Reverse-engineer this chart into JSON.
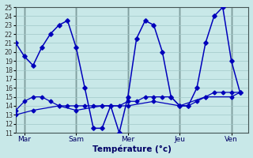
{
  "background_color": "#c8e8e8",
  "grid_color": "#a0c8c8",
  "line_color": "#0000bb",
  "vline_color": "#334444",
  "xlabel": "Température (°c)",
  "ylim": [
    11,
    25
  ],
  "yticks": [
    11,
    12,
    13,
    14,
    15,
    16,
    17,
    18,
    19,
    20,
    21,
    22,
    23,
    24,
    25
  ],
  "xlim": [
    0,
    27
  ],
  "x_day_labels": [
    "Mar",
    "Sam",
    "Mer",
    "Jeu",
    "Ven"
  ],
  "x_day_positions": [
    1,
    7,
    13,
    19,
    25
  ],
  "x_vline_positions": [
    1,
    7,
    13,
    19,
    25
  ],
  "max_x": [
    0,
    1,
    2,
    3,
    4,
    5,
    6,
    7,
    8,
    9,
    10,
    11,
    12,
    13,
    14,
    15,
    16,
    17,
    18,
    19,
    20,
    21,
    22,
    23,
    24,
    25,
    26
  ],
  "max_y": [
    21.0,
    19.5,
    18.5,
    20.5,
    22.0,
    23.0,
    23.5,
    20.5,
    16.0,
    11.5,
    11.5,
    14.0,
    11.0,
    15.0,
    21.5,
    23.5,
    23.0,
    20.0,
    15.0,
    14.0,
    14.0,
    16.0,
    21.0,
    24.0,
    25.0,
    19.0,
    15.5
  ],
  "flat1_x": [
    0,
    1,
    2,
    3,
    4,
    5,
    6,
    7,
    8,
    9,
    10,
    11,
    12,
    13,
    14,
    15,
    16,
    17,
    18,
    19,
    20,
    21,
    22,
    23,
    24,
    25,
    26
  ],
  "flat1_y": [
    13.5,
    14.5,
    15.0,
    15.0,
    14.5,
    14.0,
    14.0,
    14.0,
    14.0,
    14.0,
    14.0,
    14.0,
    14.0,
    14.5,
    14.5,
    15.0,
    15.0,
    15.0,
    15.0,
    14.0,
    14.0,
    14.5,
    15.0,
    15.5,
    15.5,
    15.5,
    15.5
  ],
  "flat2_x": [
    0,
    2,
    5,
    7,
    10,
    13,
    16,
    19,
    22,
    25,
    26
  ],
  "flat2_y": [
    13.0,
    13.5,
    14.0,
    13.5,
    14.0,
    14.0,
    14.5,
    14.0,
    15.0,
    15.0,
    15.5
  ]
}
